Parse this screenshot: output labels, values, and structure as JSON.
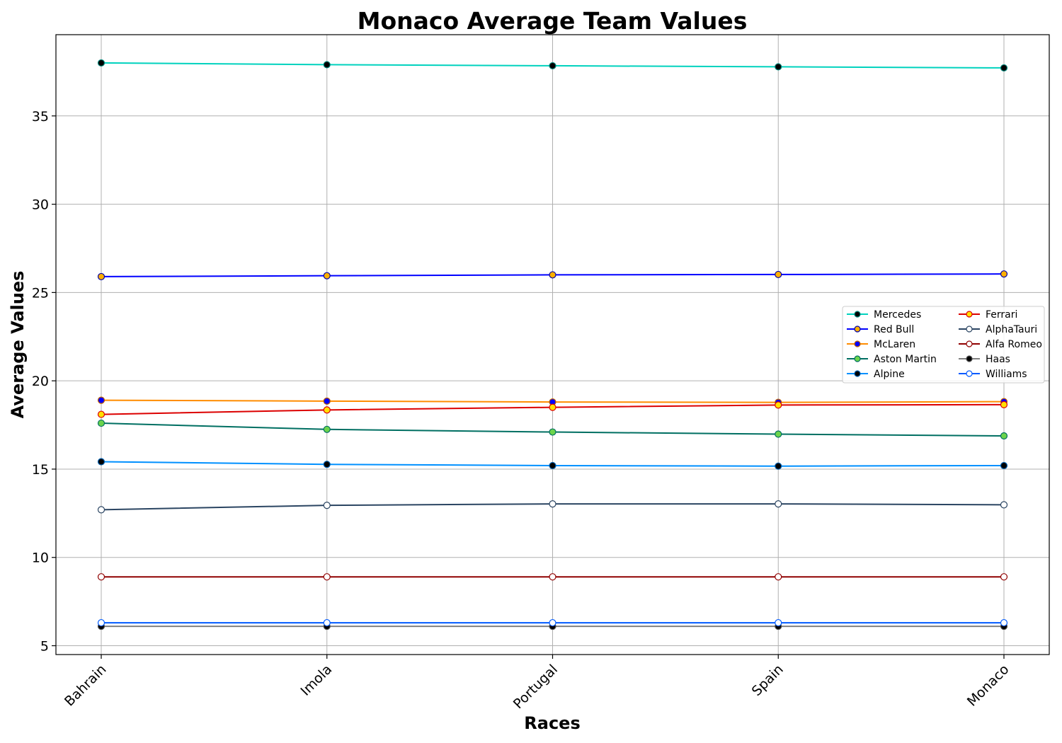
{
  "chart_data": {
    "type": "line",
    "title": "Monaco Average Team Values",
    "xlabel": "Races",
    "ylabel": "Average Values",
    "categories": [
      "Bahrain",
      "Imola",
      "Portugal",
      "Spain",
      "Monaco"
    ],
    "ylim": [
      4.5,
      39.6
    ],
    "yticks": [
      5,
      10,
      15,
      20,
      25,
      30,
      35
    ],
    "grid": true,
    "legend": {
      "placement": "center-right",
      "columns": 2
    },
    "series": [
      {
        "name": "Mercedes",
        "values": [
          38.0,
          37.9,
          37.84,
          37.78,
          37.72
        ],
        "color": "#00d2be",
        "marker_face": "#000000",
        "marker_edge": "#00877a"
      },
      {
        "name": "Red Bull",
        "values": [
          25.9,
          25.95,
          26.0,
          26.02,
          26.05
        ],
        "color": "#0000ff",
        "marker_face": "#ffb000",
        "marker_edge": "#0000aa"
      },
      {
        "name": "McLaren",
        "values": [
          18.9,
          18.85,
          18.8,
          18.78,
          18.82
        ],
        "color": "#ff8c00",
        "marker_face": "#0000ff",
        "marker_edge": "#c06000"
      },
      {
        "name": "Aston Martin",
        "values": [
          17.6,
          17.25,
          17.1,
          16.98,
          16.88
        ],
        "color": "#006f62",
        "marker_face": "#6cd44b",
        "marker_edge": "#006f62"
      },
      {
        "name": "Alpine",
        "values": [
          15.42,
          15.27,
          15.2,
          15.17,
          15.2
        ],
        "color": "#0090ff",
        "marker_face": "#000000",
        "marker_edge": "#0060b0"
      },
      {
        "name": "Ferrari",
        "values": [
          18.1,
          18.35,
          18.5,
          18.63,
          18.65
        ],
        "color": "#dc0000",
        "marker_face": "#ffe000",
        "marker_edge": "#dc0000"
      },
      {
        "name": "AlphaTauri",
        "values": [
          12.7,
          12.95,
          13.03,
          13.03,
          12.98
        ],
        "color": "#2b4562",
        "marker_face": "#ffffff",
        "marker_edge": "#2b4562"
      },
      {
        "name": "Alfa Romeo",
        "values": [
          8.9,
          8.9,
          8.9,
          8.9,
          8.9
        ],
        "color": "#900000",
        "marker_face": "#ffffff",
        "marker_edge": "#900000"
      },
      {
        "name": "Haas",
        "values": [
          6.1,
          6.1,
          6.1,
          6.1,
          6.1
        ],
        "color": "#808080",
        "marker_face": "#000000",
        "marker_edge": "#505050"
      },
      {
        "name": "Williams",
        "values": [
          6.3,
          6.3,
          6.3,
          6.3,
          6.3
        ],
        "color": "#005aff",
        "marker_face": "#ffffff",
        "marker_edge": "#005aff"
      }
    ]
  }
}
